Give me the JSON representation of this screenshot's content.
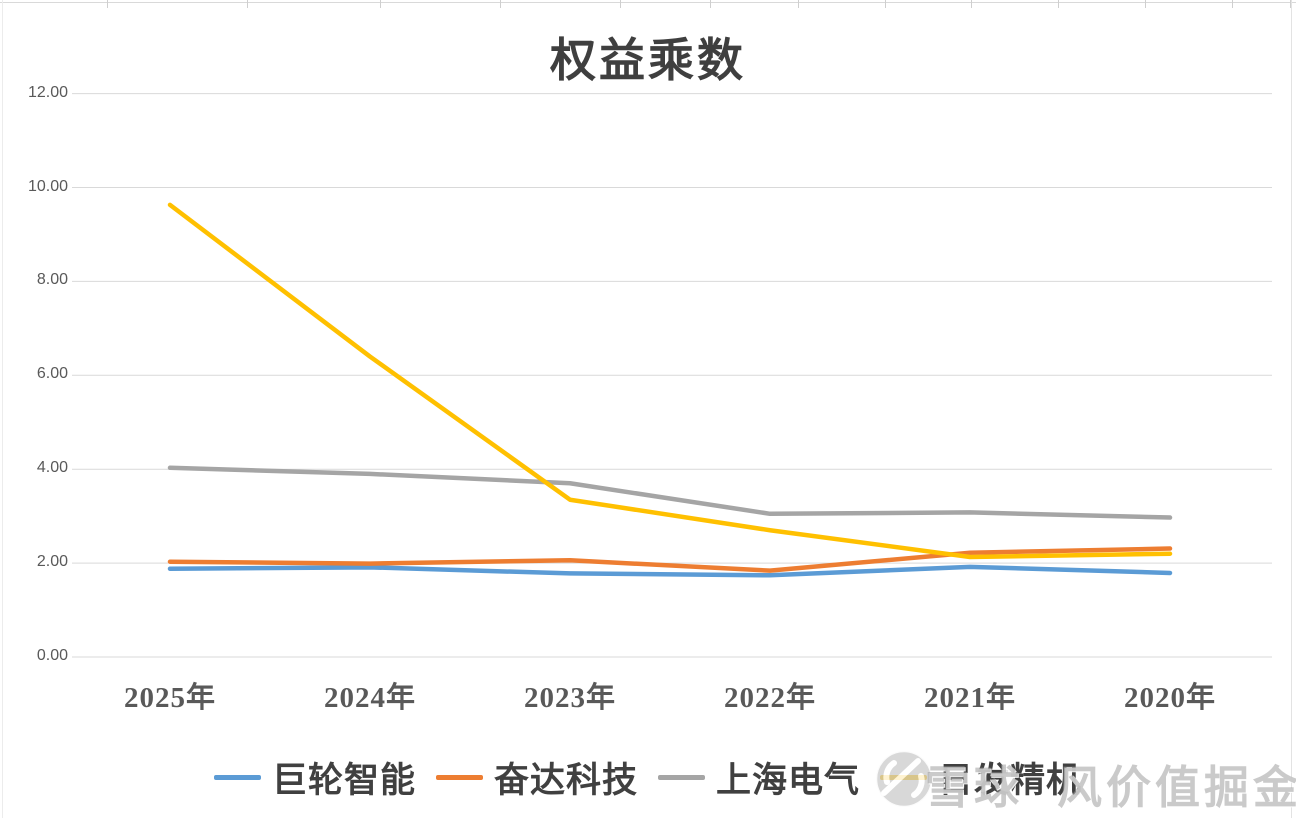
{
  "chart_data": {
    "type": "line",
    "title": "权益乘数",
    "categories": [
      "2025年",
      "2024年",
      "2023年",
      "2022年",
      "2021年",
      "2020年"
    ],
    "series": [
      {
        "name": "巨轮智能",
        "color": "#5B9BD5",
        "values": [
          1.88,
          1.91,
          1.78,
          1.74,
          1.92,
          1.79
        ]
      },
      {
        "name": "奋达科技",
        "color": "#ED7D31",
        "values": [
          2.03,
          1.99,
          2.06,
          1.84,
          2.22,
          2.31
        ]
      },
      {
        "name": "上海电气",
        "color": "#A5A5A5",
        "values": [
          4.03,
          3.9,
          3.7,
          3.05,
          3.08,
          2.97
        ]
      },
      {
        "name": "日发精机",
        "color": "#FFC000",
        "values": [
          9.63,
          6.4,
          3.35,
          2.7,
          2.13,
          2.2
        ]
      }
    ],
    "xlabel": "",
    "ylabel": "",
    "ylim": [
      0,
      12
    ],
    "y_ticks": [
      {
        "label": "0.00",
        "value": 0
      },
      {
        "label": "2.00",
        "value": 2
      },
      {
        "label": "4.00",
        "value": 4
      },
      {
        "label": "6.00",
        "value": 6
      },
      {
        "label": "8.00",
        "value": 8
      },
      {
        "label": "10.00",
        "value": 10
      },
      {
        "label": "12.00",
        "value": 12
      }
    ],
    "grid": true,
    "gridline_color": "#d9d9d9",
    "legend_position": "bottom"
  },
  "watermark": {
    "logo": "xueqiu-logo",
    "prefix": "雪球",
    "suffix": "风价值掘金",
    "color": "#9e9e9e"
  }
}
